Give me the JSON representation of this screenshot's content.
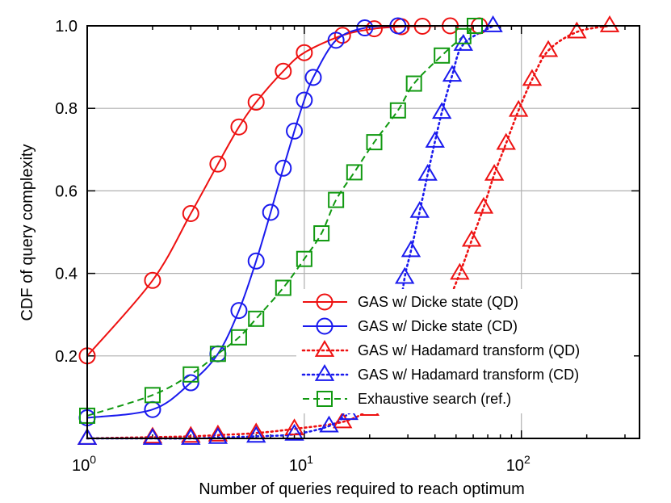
{
  "chart_data": {
    "type": "line",
    "xlabel": "Number of queries required to reach optimum",
    "ylabel": "CDF of query complexity",
    "xscale": "log",
    "xlim": [
      1,
      350
    ],
    "ylim": [
      0,
      1.0
    ],
    "x_ticks": [
      {
        "value": 1,
        "base": "10",
        "exp": "0"
      },
      {
        "value": 10,
        "base": "10",
        "exp": "1"
      },
      {
        "value": 100,
        "base": "10",
        "exp": "2"
      }
    ],
    "y_ticks": [
      {
        "value": 0.2,
        "label": "0.2"
      },
      {
        "value": 0.4,
        "label": "0.4"
      },
      {
        "value": 0.6,
        "label": "0.6"
      },
      {
        "value": 0.8,
        "label": "0.8"
      },
      {
        "value": 1.0,
        "label": "1.0"
      }
    ],
    "grid": true,
    "legend_position": "bottom-right",
    "series": [
      {
        "name": "GAS w/ Dicke state (QD)",
        "color": "#ee1111",
        "marker": "circle",
        "line_style": "solid",
        "points": [
          [
            1,
            0.2
          ],
          [
            2,
            0.383
          ],
          [
            3,
            0.545
          ],
          [
            4,
            0.665
          ],
          [
            5,
            0.755
          ],
          [
            6,
            0.815
          ],
          [
            8,
            0.89
          ],
          [
            10,
            0.935
          ],
          [
            15,
            0.977
          ],
          [
            21,
            0.993
          ],
          [
            28,
            0.998
          ],
          [
            35,
            0.999
          ],
          [
            47,
            1.0
          ],
          [
            64,
            1.0
          ]
        ]
      },
      {
        "name": "GAS w/ Dicke state (CD)",
        "color": "#1a1aee",
        "marker": "circle",
        "line_style": "solid",
        "points": [
          [
            1,
            0.05
          ],
          [
            2,
            0.07
          ],
          [
            3,
            0.135
          ],
          [
            4,
            0.205
          ],
          [
            5,
            0.31
          ],
          [
            6,
            0.43
          ],
          [
            7,
            0.548
          ],
          [
            8,
            0.655
          ],
          [
            9,
            0.745
          ],
          [
            10,
            0.82
          ],
          [
            11,
            0.875
          ],
          [
            14,
            0.965
          ],
          [
            19,
            0.995
          ],
          [
            27,
            1.0
          ]
        ]
      },
      {
        "name": "GAS w/ Hadamard transform (QD)",
        "color": "#ee1111",
        "marker": "triangle",
        "line_style": "dotted",
        "points": [
          [
            1,
            0.0
          ],
          [
            2,
            0.003
          ],
          [
            3,
            0.005
          ],
          [
            4,
            0.008
          ],
          [
            6,
            0.013
          ],
          [
            9,
            0.023
          ],
          [
            15,
            0.04
          ],
          [
            20,
            0.07
          ],
          [
            25,
            0.11
          ],
          [
            30,
            0.16
          ],
          [
            37,
            0.23
          ],
          [
            45,
            0.32
          ],
          [
            52,
            0.4
          ],
          [
            59,
            0.48
          ],
          [
            67,
            0.56
          ],
          [
            75,
            0.64
          ],
          [
            85,
            0.715
          ],
          [
            97,
            0.795
          ],
          [
            112,
            0.87
          ],
          [
            133,
            0.94
          ],
          [
            180,
            0.985
          ],
          [
            255,
            1.0
          ]
        ]
      },
      {
        "name": "GAS w/ Hadamard transform (CD)",
        "color": "#1a1aee",
        "marker": "triangle",
        "line_style": "dotted",
        "points": [
          [
            1,
            0.0
          ],
          [
            2,
            0.0
          ],
          [
            3,
            0.0
          ],
          [
            4,
            0.002
          ],
          [
            6,
            0.005
          ],
          [
            9,
            0.01
          ],
          [
            13,
            0.03
          ],
          [
            16,
            0.06
          ],
          [
            19,
            0.09
          ],
          [
            22,
            0.13
          ],
          [
            25,
            0.19
          ],
          [
            27,
            0.28
          ],
          [
            29,
            0.39
          ],
          [
            31,
            0.455
          ],
          [
            34,
            0.55
          ],
          [
            37,
            0.64
          ],
          [
            40,
            0.72
          ],
          [
            43,
            0.79
          ],
          [
            48,
            0.88
          ],
          [
            54,
            0.955
          ],
          [
            74,
            1.0
          ]
        ]
      },
      {
        "name": "Exhaustive search (ref.)",
        "color": "#119911",
        "marker": "square",
        "line_style": "dashed",
        "points": [
          [
            1,
            0.055
          ],
          [
            2,
            0.105
          ],
          [
            3,
            0.155
          ],
          [
            4,
            0.205
          ],
          [
            5,
            0.245
          ],
          [
            6,
            0.29
          ],
          [
            8,
            0.365
          ],
          [
            10,
            0.435
          ],
          [
            12,
            0.497
          ],
          [
            14,
            0.578
          ],
          [
            17,
            0.645
          ],
          [
            21,
            0.718
          ],
          [
            27,
            0.795
          ],
          [
            32,
            0.86
          ],
          [
            43,
            0.928
          ],
          [
            54,
            0.975
          ],
          [
            61,
            1.0
          ]
        ]
      }
    ]
  }
}
